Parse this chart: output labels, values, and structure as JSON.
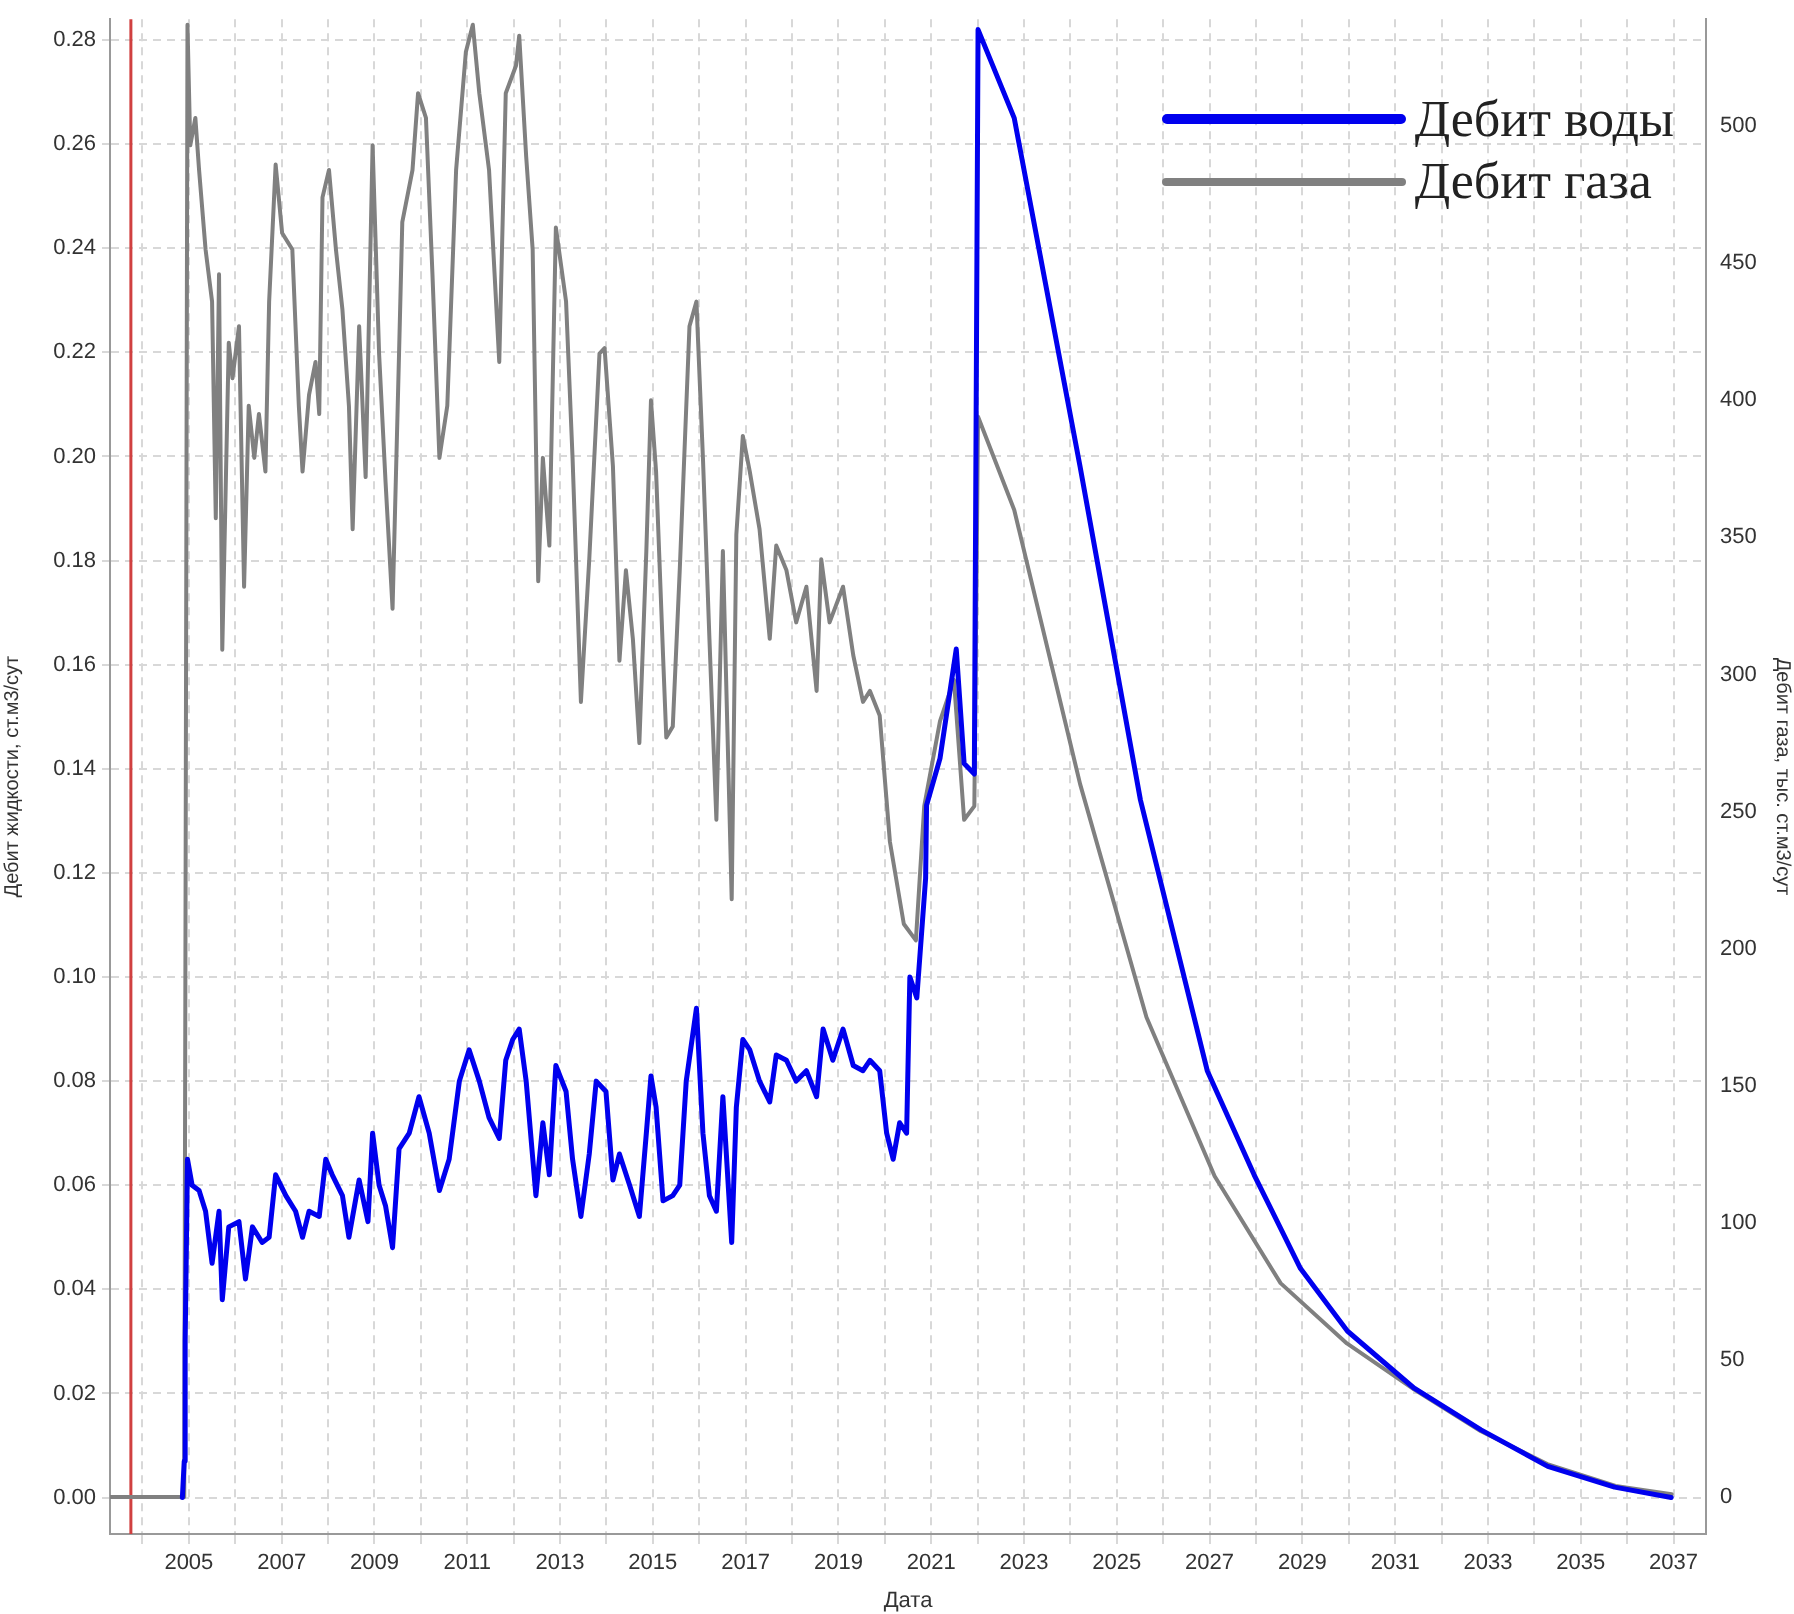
{
  "chart_data": {
    "type": "line",
    "xlabel": "Дата",
    "ylabel": "Дебит жидкости, ст.м3/сут",
    "y2label": "Дебит газа, тыс. ст.м3/сут",
    "xlim": [
      2003.3,
      2037.7
    ],
    "xticks": [
      {
        "value": 2004,
        "label": null
      },
      2005,
      {
        "value": 2006,
        "label": null
      },
      2007,
      {
        "value": 2008,
        "label": null
      },
      2009,
      {
        "value": 2010,
        "label": null
      },
      2011,
      {
        "value": 2012,
        "label": null
      },
      2013,
      {
        "value": 2014,
        "label": null
      },
      2015,
      {
        "value": 2016,
        "label": null
      },
      2017,
      {
        "value": 2018,
        "label": null
      },
      2019,
      {
        "value": 2020,
        "label": null
      },
      2021,
      {
        "value": 2022,
        "label": null
      },
      2023,
      {
        "value": 2024,
        "label": null
      },
      2025,
      {
        "value": 2026,
        "label": null
      },
      2027,
      {
        "value": 2028,
        "label": null
      },
      2029,
      {
        "value": 2030,
        "label": null
      },
      2031,
      {
        "value": 2032,
        "label": null
      },
      2033,
      {
        "value": 2034,
        "label": null
      },
      2035,
      {
        "value": 2036,
        "label": null
      },
      2037
    ],
    "ylim": [
      -0.007,
      0.284
    ],
    "yticks": [
      {
        "value": 0,
        "label": "0.00"
      },
      {
        "value": 0.02,
        "label": "0.02"
      },
      {
        "value": 0.04,
        "label": "0.04"
      },
      {
        "value": 0.06,
        "label": "0.06"
      },
      {
        "value": 0.08,
        "label": "0.08"
      },
      {
        "value": 0.1,
        "label": "0.10"
      },
      {
        "value": 0.12,
        "label": "0.12"
      },
      {
        "value": 0.14,
        "label": "0.14"
      },
      {
        "value": 0.16,
        "label": "0.16"
      },
      {
        "value": 0.18,
        "label": "0.18"
      },
      {
        "value": 0.2,
        "label": "0.20"
      },
      {
        "value": 0.22,
        "label": "0.22"
      },
      {
        "value": 0.24,
        "label": "0.24"
      },
      {
        "value": 0.26,
        "label": "0.26"
      },
      {
        "value": 0.28,
        "label": "0.28"
      }
    ],
    "y2lim": [
      -13.5,
      539
    ],
    "y2ticks": [
      0,
      50,
      100,
      150,
      200,
      250,
      300,
      350,
      400,
      450,
      500
    ],
    "grid": true,
    "legend": "top right",
    "ref_lines": [
      {
        "axis": "x",
        "value": 2003.75,
        "color": "#d04040"
      }
    ],
    "series": [
      {
        "name": "Дебит воды",
        "color": "#0000ee",
        "axis": "y",
        "x": [
          2004.86,
          2004.9,
          2004.92,
          2004.97,
          2005.07,
          2005.22,
          2005.36,
          2005.5,
          2005.65,
          2005.72,
          2005.86,
          2006.08,
          2006.22,
          2006.37,
          2006.58,
          2006.73,
          2006.87,
          2007.09,
          2007.3,
          2007.45,
          2007.59,
          2007.81,
          2007.95,
          2008.09,
          2008.31,
          2008.45,
          2008.67,
          2008.86,
          2008.96,
          2009.1,
          2009.24,
          2009.39,
          2009.53,
          2009.75,
          2009.96,
          2010.18,
          2010.4,
          2010.61,
          2010.83,
          2011.04,
          2011.26,
          2011.47,
          2011.69,
          2011.83,
          2011.98,
          2012.12,
          2012.27,
          2012.48,
          2012.63,
          2012.77,
          2012.91,
          2013.13,
          2013.27,
          2013.45,
          2013.63,
          2013.78,
          2013.99,
          2014.14,
          2014.28,
          2014.5,
          2014.71,
          2014.86,
          2014.96,
          2015.07,
          2015.22,
          2015.43,
          2015.58,
          2015.72,
          2015.94,
          2016.08,
          2016.22,
          2016.37,
          2016.51,
          2016.7,
          2016.8,
          2016.94,
          2017.09,
          2017.3,
          2017.52,
          2017.66,
          2017.88,
          2018.09,
          2018.31,
          2018.53,
          2018.67,
          2018.88,
          2019.1,
          2019.32,
          2019.53,
          2019.68,
          2019.89,
          2020.04,
          2020.18,
          2020.32,
          2020.47,
          2020.54,
          2020.69,
          2020.88,
          2020.9,
          2021.19,
          2021.54,
          2021.71,
          2021.93,
          2022.01,
          2022.79,
          2024.21,
          2025.51,
          2026.95,
          2027.96,
          2028.96,
          2029.97,
          2031.41,
          2032.85,
          2034.29,
          2035.73,
          2036.95
        ],
        "values": [
          0,
          0.007,
          0.03,
          0.065,
          0.06,
          0.059,
          0.055,
          0.045,
          0.055,
          0.038,
          0.052,
          0.053,
          0.042,
          0.052,
          0.049,
          0.05,
          0.062,
          0.058,
          0.055,
          0.05,
          0.055,
          0.054,
          0.065,
          0.062,
          0.058,
          0.05,
          0.061,
          0.053,
          0.07,
          0.06,
          0.056,
          0.048,
          0.067,
          0.07,
          0.077,
          0.07,
          0.059,
          0.065,
          0.08,
          0.086,
          0.08,
          0.073,
          0.069,
          0.084,
          0.088,
          0.09,
          0.08,
          0.058,
          0.072,
          0.062,
          0.083,
          0.078,
          0.065,
          0.054,
          0.066,
          0.08,
          0.078,
          0.061,
          0.066,
          0.06,
          0.054,
          0.07,
          0.081,
          0.075,
          0.057,
          0.058,
          0.06,
          0.08,
          0.094,
          0.07,
          0.058,
          0.055,
          0.077,
          0.049,
          0.075,
          0.088,
          0.086,
          0.08,
          0.076,
          0.085,
          0.084,
          0.08,
          0.082,
          0.077,
          0.09,
          0.084,
          0.09,
          0.083,
          0.082,
          0.084,
          0.082,
          0.07,
          0.065,
          0.072,
          0.07,
          0.1,
          0.096,
          0.119,
          0.133,
          0.142,
          0.163,
          0.141,
          0.139,
          0.282,
          0.265,
          0.198,
          0.134,
          0.082,
          0.062,
          0.044,
          0.032,
          0.021,
          0.013,
          0.006,
          0.002,
          0
        ]
      },
      {
        "name": "Дебит газа",
        "color": "#808080",
        "axis": "y2",
        "x": [
          2003.3,
          2004.9,
          2004.97,
          2005.03,
          2005.14,
          2005.22,
          2005.36,
          2005.5,
          2005.58,
          2005.65,
          2005.72,
          2005.86,
          2005.94,
          2006.08,
          2006.19,
          2006.29,
          2006.41,
          2006.51,
          2006.65,
          2006.73,
          2006.87,
          2007.01,
          2007.23,
          2007.37,
          2007.45,
          2007.59,
          2007.73,
          2007.81,
          2007.88,
          2008.02,
          2008.17,
          2008.31,
          2008.45,
          2008.53,
          2008.67,
          2008.81,
          2008.96,
          2009.1,
          2009.24,
          2009.39,
          2009.53,
          2009.6,
          2009.82,
          2009.94,
          2010.11,
          2010.25,
          2010.4,
          2010.57,
          2010.76,
          2010.97,
          2011.12,
          2011.26,
          2011.47,
          2011.69,
          2011.83,
          2012.05,
          2012.12,
          2012.27,
          2012.41,
          2012.53,
          2012.63,
          2012.77,
          2012.91,
          2013.13,
          2013.27,
          2013.45,
          2013.63,
          2013.85,
          2013.96,
          2014.14,
          2014.28,
          2014.42,
          2014.57,
          2014.71,
          2014.86,
          2014.96,
          2015.07,
          2015.22,
          2015.29,
          2015.43,
          2015.58,
          2015.79,
          2015.94,
          2016.08,
          2016.22,
          2016.37,
          2016.51,
          2016.7,
          2016.8,
          2016.94,
          2017.09,
          2017.3,
          2017.52,
          2017.66,
          2017.88,
          2018.09,
          2018.31,
          2018.53,
          2018.63,
          2018.81,
          2019.1,
          2019.32,
          2019.53,
          2019.68,
          2019.89,
          2020.11,
          2020.41,
          2020.67,
          2020.85,
          2021.19,
          2021.49,
          2021.71,
          2021.93,
          2022.01,
          2022.79,
          2024.21,
          2025.64,
          2027.11,
          2028.53,
          2029.96,
          2031.43,
          2032.85,
          2034.28,
          2035.75,
          2036.96
        ],
        "values": [
          0,
          0,
          537,
          493,
          503,
          484,
          455,
          436,
          357,
          446,
          309,
          421,
          408,
          427,
          332,
          398,
          379,
          395,
          374,
          436,
          486,
          461,
          455,
          398,
          374,
          402,
          414,
          395,
          474,
          484,
          455,
          433,
          398,
          353,
          427,
          372,
          493,
          417,
          370,
          324,
          417,
          465,
          484,
          512,
          503,
          446,
          379,
          398,
          484,
          527,
          537,
          512,
          484,
          414,
          512,
          522,
          533,
          489,
          455,
          334,
          379,
          347,
          463,
          436,
          379,
          290,
          342,
          417,
          419,
          376,
          305,
          338,
          313,
          275,
          345,
          400,
          374,
          307,
          277,
          281,
          338,
          427,
          436,
          379,
          313,
          247,
          345,
          218,
          351,
          387,
          374,
          353,
          313,
          347,
          338,
          319,
          332,
          294,
          342,
          319,
          332,
          307,
          290,
          294,
          285,
          239,
          209,
          203,
          252,
          283,
          298,
          247,
          252,
          394,
          360,
          260,
          175,
          117,
          78,
          56,
          39,
          24,
          12,
          4,
          1
        ]
      }
    ]
  }
}
